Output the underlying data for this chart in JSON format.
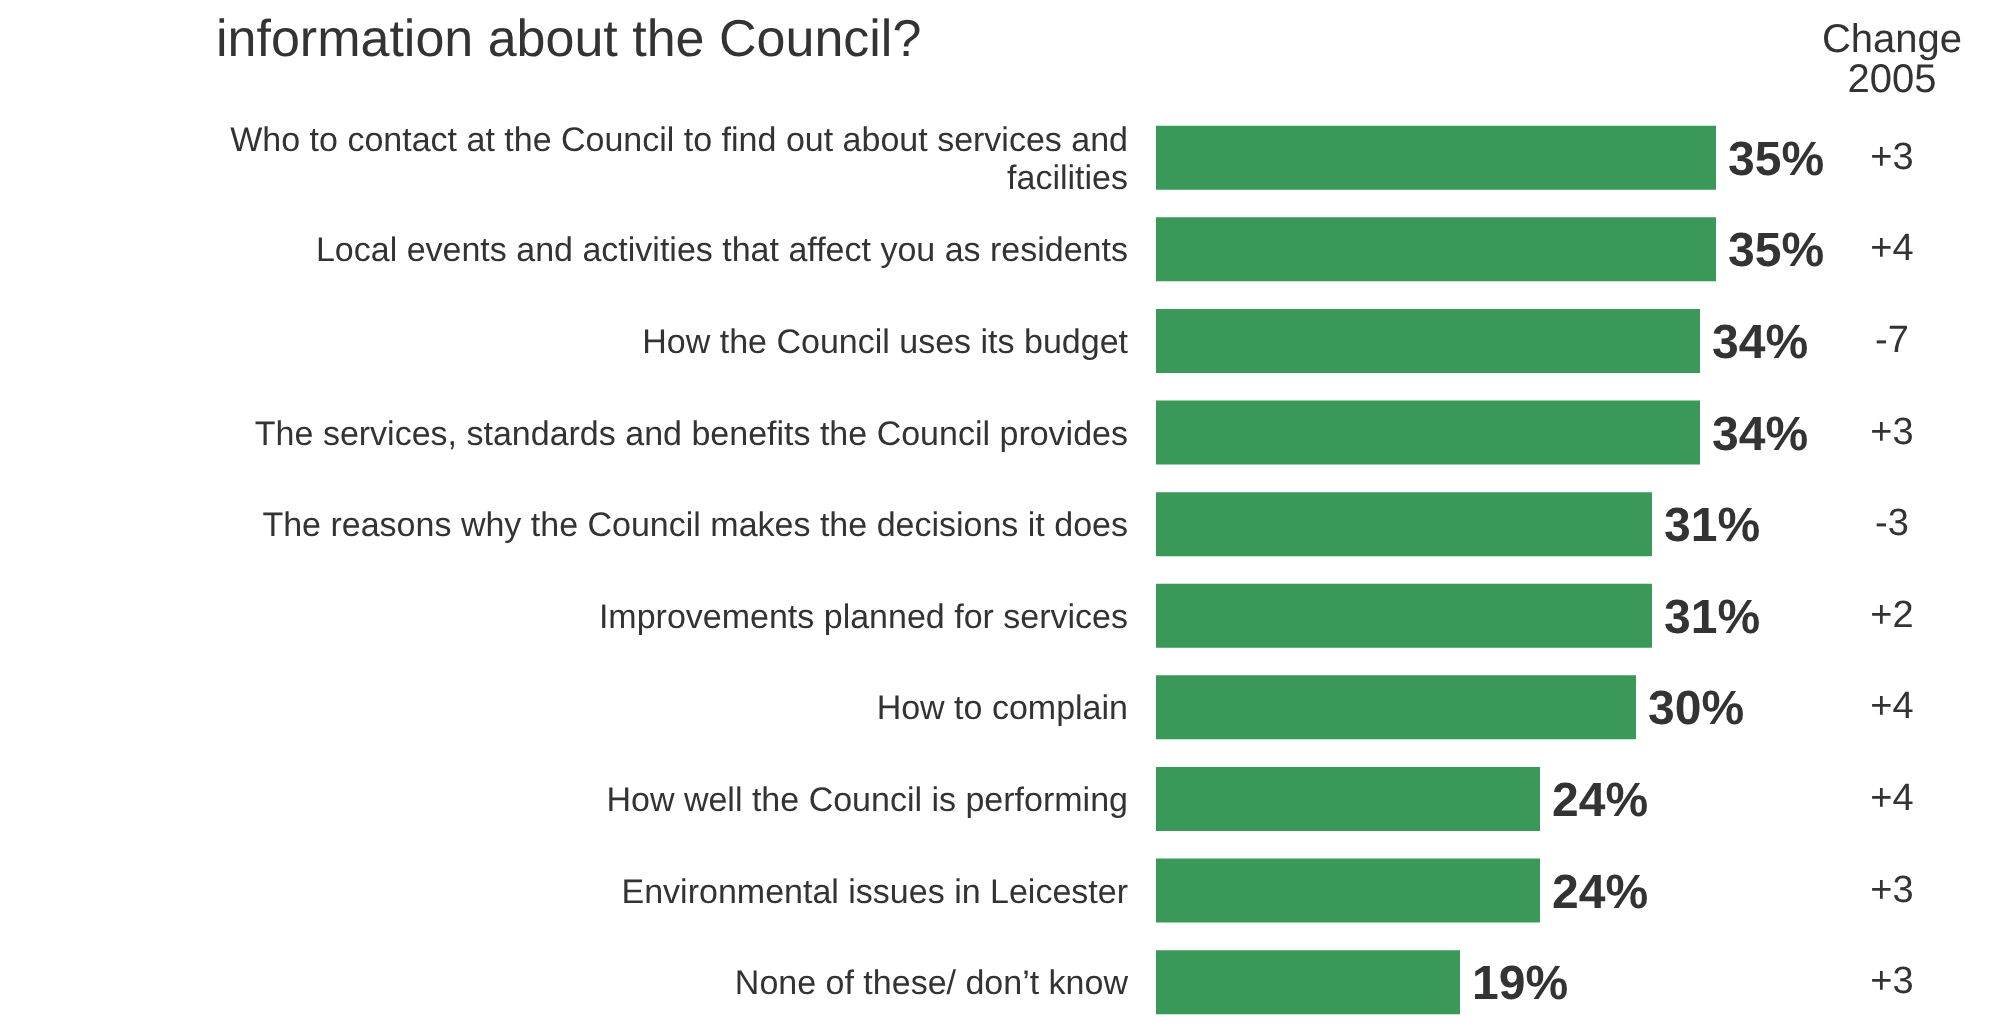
{
  "chart_data": {
    "type": "bar",
    "orientation": "horizontal",
    "title": "information about the Council?",
    "categories": [
      "Who to contact at the Council to find out about services and facilities",
      "Local events and activities that affect you as residents",
      "How the Council uses its budget",
      "The services, standards and benefits the Council provides",
      "The reasons why the Council makes the decisions it does",
      "Improvements planned for services",
      "How to complain",
      "How well the Council is performing",
      "Environmental issues in Leicester",
      "None of these/ don’t know"
    ],
    "values": [
      35,
      35,
      34,
      34,
      31,
      31,
      30,
      24,
      24,
      19
    ],
    "value_labels": [
      "35%",
      "35%",
      "34%",
      "34%",
      "31%",
      "31%",
      "30%",
      "24%",
      "24%",
      "19%"
    ],
    "color": "#3a9858",
    "tick_labels": "y",
    "annotations": [
      "Change 2005",
      "+3",
      "+4",
      "-7",
      "+3",
      "-3",
      "+2",
      "+4",
      "+4",
      "+3",
      "+3"
    ]
  }
}
